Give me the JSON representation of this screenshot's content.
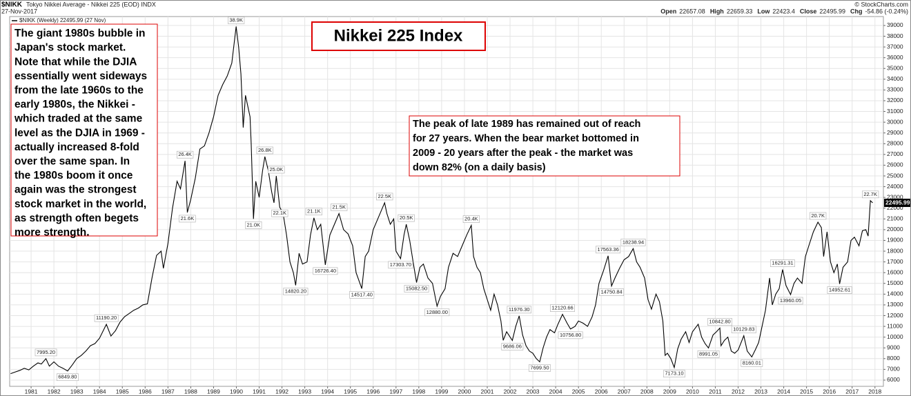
{
  "chart_data": {
    "type": "line",
    "symbol": "$NIKK",
    "subtitle": "Tokyo Nikkei Average - Nikkei 225 (EOD) INDX",
    "date": "27-Nov-2017",
    "source": "© StockCharts.com",
    "ohlc": [
      {
        "name": "Open",
        "value": 22657.08
      },
      {
        "name": "High",
        "value": 22659.33
      },
      {
        "name": "Low",
        "value": 22423.4
      },
      {
        "name": "Close",
        "value": 22495.99
      }
    ],
    "change_name": "Chg",
    "change": "-54.86 (-0.24%)",
    "title": "Nikkei 225 Index",
    "note_left": [
      "The giant 1980s bubble in",
      "Japan's stock market.",
      "Note that while the DJIA",
      "essentially went sideways",
      "from the late 1960s to the",
      "early 1980s, the Nikkei -",
      "which traded at the same",
      "level as the DJIA in 1969 -",
      "actually increased 8-fold",
      "over the same span. In",
      "the 1980s boom it once",
      "again was the strongest",
      "stock market in the world,",
      "as strength often begets",
      "more strength."
    ],
    "note_right": [
      "The peak of late 1989 has remained out of reach",
      "for 27 years. When the bear market bottomed in",
      "2009 - 20 years after the peak - the market was",
      "down 82% (on a daily basis)"
    ],
    "x": [
      1980.1,
      1980.3,
      1980.5,
      1980.7,
      1980.9,
      1981.1,
      1981.3,
      1981.45,
      1981.65,
      1981.8,
      1982.0,
      1982.2,
      1982.4,
      1982.6,
      1982.8,
      1983.0,
      1983.2,
      1983.4,
      1983.6,
      1983.8,
      1984.0,
      1984.3,
      1984.5,
      1984.7,
      1984.9,
      1985.1,
      1985.3,
      1985.5,
      1985.7,
      1985.9,
      1986.1,
      1986.3,
      1986.5,
      1986.7,
      1986.8,
      1987.0,
      1987.2,
      1987.4,
      1987.55,
      1987.75,
      1987.85,
      1988.0,
      1988.2,
      1988.4,
      1988.6,
      1988.8,
      1989.0,
      1989.2,
      1989.4,
      1989.6,
      1989.8,
      1989.99,
      1990.1,
      1990.2,
      1990.3,
      1990.4,
      1990.5,
      1990.6,
      1990.65,
      1990.75,
      1990.85,
      1991.0,
      1991.15,
      1991.25,
      1991.4,
      1991.55,
      1991.65,
      1991.75,
      1991.9,
      1992.05,
      1992.2,
      1992.35,
      1992.5,
      1992.6,
      1992.75,
      1992.9,
      1993.1,
      1993.25,
      1993.4,
      1993.55,
      1993.7,
      1993.9,
      1994.1,
      1994.3,
      1994.5,
      1994.7,
      1994.9,
      1995.1,
      1995.25,
      1995.5,
      1995.65,
      1995.8,
      1996.0,
      1996.2,
      1996.5,
      1996.6,
      1996.75,
      1996.9,
      1997.0,
      1997.2,
      1997.35,
      1997.45,
      1997.6,
      1997.75,
      1997.9,
      1998.05,
      1998.2,
      1998.4,
      1998.6,
      1998.8,
      1998.95,
      1999.15,
      1999.3,
      1999.5,
      1999.7,
      1999.9,
      2000.1,
      2000.3,
      2000.4,
      2000.55,
      2000.7,
      2000.85,
      2001.0,
      2001.15,
      2001.3,
      2001.45,
      2001.6,
      2001.7,
      2001.85,
      2002.1,
      2002.25,
      2002.4,
      2002.55,
      2002.7,
      2002.85,
      2003.0,
      2003.15,
      2003.3,
      2003.45,
      2003.6,
      2003.75,
      2003.95,
      2004.1,
      2004.3,
      2004.5,
      2004.65,
      2004.85,
      2005.0,
      2005.2,
      2005.4,
      2005.6,
      2005.75,
      2005.9,
      2006.1,
      2006.3,
      2006.45,
      2006.6,
      2006.8,
      2007.0,
      2007.2,
      2007.4,
      2007.55,
      2007.7,
      2007.9,
      2008.05,
      2008.2,
      2008.4,
      2008.55,
      2008.7,
      2008.8,
      2008.9,
      2009.05,
      2009.2,
      2009.35,
      2009.5,
      2009.7,
      2009.85,
      2010.0,
      2010.25,
      2010.4,
      2010.55,
      2010.7,
      2010.9,
      2011.05,
      2011.2,
      2011.25,
      2011.4,
      2011.55,
      2011.7,
      2011.85,
      2012.0,
      2012.25,
      2012.4,
      2012.6,
      2012.75,
      2012.9,
      2013.05,
      2013.2,
      2013.38,
      2013.5,
      2013.65,
      2013.8,
      2013.95,
      2014.1,
      2014.3,
      2014.45,
      2014.6,
      2014.8,
      2014.95,
      2015.1,
      2015.3,
      2015.5,
      2015.65,
      2015.75,
      2015.9,
      2016.05,
      2016.2,
      2016.35,
      2016.45,
      2016.6,
      2016.8,
      2016.95,
      2017.1,
      2017.3,
      2017.45,
      2017.6,
      2017.7,
      2017.8,
      2017.9
    ],
    "series": [
      {
        "name": "$NIKK (Weekly) 22495.99 (27 Nov)",
        "color": "#000000",
        "values": [
          6600,
          6750,
          6900,
          7100,
          6950,
          7300,
          7600,
          7500,
          7995.2,
          7300,
          7700,
          7300,
          7100,
          6849.8,
          7400,
          8000,
          8300,
          8700,
          9200,
          9400,
          9900,
          11190.2,
          10100,
          10600,
          11400,
          11900,
          12200,
          12500,
          12700,
          13000,
          13100,
          15500,
          17600,
          18000,
          16400,
          18700,
          22000,
          24500,
          23800,
          26400,
          21600,
          22800,
          24800,
          27500,
          27800,
          29000,
          30500,
          32500,
          33500,
          34300,
          35500,
          38900,
          37000,
          34500,
          29500,
          32500,
          31500,
          30500,
          28000,
          21000,
          24500,
          23000,
          25500,
          26800,
          25500,
          23500,
          22500,
          25000,
          22100,
          21500,
          19500,
          17000,
          16000,
          14820.2,
          17800,
          16800,
          17000,
          19500,
          21100,
          20000,
          20500,
          16726.4,
          19500,
          20500,
          21500,
          20000,
          19600,
          18500,
          16000,
          14517.4,
          17500,
          18000,
          20000,
          21000,
          22500,
          21500,
          20500,
          21000,
          18000,
          17303.7,
          19500,
          20500,
          19000,
          17000,
          15082.5,
          16500,
          16800,
          15500,
          15000,
          12880,
          13800,
          14500,
          16500,
          17800,
          17500,
          18500,
          19500,
          20400,
          17500,
          16500,
          16000,
          14500,
          13500,
          12500,
          14000,
          13000,
          11500,
          9700,
          10500,
          9686.06,
          11000,
          11976.3,
          10200,
          9200,
          8700,
          8500,
          8000,
          7699.5,
          9000,
          10000,
          10700,
          10400,
          11200,
          12120.66,
          11300,
          10756.8,
          11000,
          11500,
          11300,
          11000,
          11900,
          13000,
          15000,
          16200,
          17563.36,
          14750.84,
          15500,
          16400,
          17200,
          17500,
          18238.94,
          17000,
          16500,
          15500,
          13500,
          12600,
          14000,
          13300,
          11500,
          8300,
          8500,
          8000,
          7173.1,
          8900,
          9800,
          10500,
          9500,
          10500,
          11200,
          10000,
          9400,
          8991.05,
          10200,
          10500,
          10842.8,
          9200,
          9700,
          10000,
          8700,
          8500,
          8800,
          10129.83,
          8700,
          8160.01,
          8800,
          9500,
          11000,
          12500,
          15500,
          13000,
          14000,
          14500,
          16291.31,
          14800,
          13960.05,
          15000,
          15500,
          15000,
          17500,
          18500,
          19800,
          20700,
          20200,
          17500,
          19800,
          17000,
          16000,
          16800,
          14952.61,
          16500,
          17000,
          19000,
          19300,
          18500,
          19900,
          20000,
          19400,
          22700,
          22495.99
        ]
      }
    ],
    "last_value": 22495.99,
    "annotations": [
      {
        "x": 1981.65,
        "value": 7995.2,
        "label": "7995.20",
        "side": "above"
      },
      {
        "x": 1982.6,
        "value": 6849.8,
        "label": "6849.80",
        "side": "below"
      },
      {
        "x": 1984.3,
        "value": 11190.2,
        "label": "11190.20",
        "side": "above"
      },
      {
        "x": 1987.75,
        "value": 26400,
        "label": "26.4K",
        "side": "above"
      },
      {
        "x": 1987.85,
        "value": 21600,
        "label": "21.6K",
        "side": "below"
      },
      {
        "x": 1989.99,
        "value": 38900,
        "label": "38.9K",
        "side": "above"
      },
      {
        "x": 1990.75,
        "value": 21000,
        "label": "21.0K",
        "side": "below"
      },
      {
        "x": 1991.25,
        "value": 26800,
        "label": "26.8K",
        "side": "above"
      },
      {
        "x": 1991.75,
        "value": 25000,
        "label": "25.0K",
        "side": "above"
      },
      {
        "x": 1991.9,
        "value": 22100,
        "label": "22.1K",
        "side": "below"
      },
      {
        "x": 1992.6,
        "value": 14820.2,
        "label": "14820.20",
        "side": "below"
      },
      {
        "x": 1993.4,
        "value": 21100,
        "label": "21.1K",
        "side": "above"
      },
      {
        "x": 1993.9,
        "value": 16726.4,
        "label": "16726.40",
        "side": "below"
      },
      {
        "x": 1994.5,
        "value": 21500,
        "label": "21.5K",
        "side": "above"
      },
      {
        "x": 1995.5,
        "value": 14517.4,
        "label": "14517.40",
        "side": "below"
      },
      {
        "x": 1996.5,
        "value": 22500,
        "label": "22.5K",
        "side": "above"
      },
      {
        "x": 1997.45,
        "value": 20500,
        "label": "20.5K",
        "side": "above"
      },
      {
        "x": 1997.2,
        "value": 17303.7,
        "label": "17303.70",
        "side": "below"
      },
      {
        "x": 1997.9,
        "value": 15082.5,
        "label": "15082.50",
        "side": "below"
      },
      {
        "x": 1998.8,
        "value": 12880,
        "label": "12880.00",
        "side": "below"
      },
      {
        "x": 2000.3,
        "value": 20400,
        "label": "20.4K",
        "side": "above"
      },
      {
        "x": 2002.1,
        "value": 9686.06,
        "label": "9686.06",
        "side": "below"
      },
      {
        "x": 2002.4,
        "value": 11976.3,
        "label": "11976.30",
        "side": "above"
      },
      {
        "x": 2003.3,
        "value": 7699.5,
        "label": "7699.50",
        "side": "below"
      },
      {
        "x": 2004.3,
        "value": 12120.66,
        "label": "12120.66",
        "side": "above"
      },
      {
        "x": 2004.65,
        "value": 10756.8,
        "label": "10756.80",
        "side": "below"
      },
      {
        "x": 2006.3,
        "value": 17563.36,
        "label": "17563.36",
        "side": "above"
      },
      {
        "x": 2006.45,
        "value": 14750.84,
        "label": "14750.84",
        "side": "below"
      },
      {
        "x": 2007.4,
        "value": 18238.94,
        "label": "18238.94",
        "side": "above"
      },
      {
        "x": 2009.2,
        "value": 7173.1,
        "label": "7173.10",
        "side": "below"
      },
      {
        "x": 2010.7,
        "value": 8991.05,
        "label": "8991.05",
        "side": "below"
      },
      {
        "x": 2011.2,
        "value": 10842.8,
        "label": "10842.80",
        "side": "above"
      },
      {
        "x": 2012.25,
        "value": 10129.83,
        "label": "10129.83",
        "side": "above"
      },
      {
        "x": 2012.6,
        "value": 8160.01,
        "label": "8160.01",
        "side": "below"
      },
      {
        "x": 2013.95,
        "value": 16291.31,
        "label": "16291.31",
        "side": "above"
      },
      {
        "x": 2014.3,
        "value": 13960.05,
        "label": "13960.05",
        "side": "below"
      },
      {
        "x": 2015.5,
        "value": 20700,
        "label": "20.7K",
        "side": "above"
      },
      {
        "x": 2016.45,
        "value": 14952.61,
        "label": "14952.61",
        "side": "below"
      },
      {
        "x": 2017.8,
        "value": 22700,
        "label": "22.7K",
        "side": "above"
      }
    ],
    "xlim": [
      1980.06,
      2018.37
    ],
    "xticks": [
      1981,
      1982,
      1983,
      1984,
      1985,
      1986,
      1987,
      1988,
      1989,
      1990,
      1991,
      1992,
      1993,
      1994,
      1995,
      1996,
      1997,
      1998,
      1999,
      2000,
      2001,
      2002,
      2003,
      2004,
      2005,
      2006,
      2007,
      2008,
      2009,
      2010,
      2011,
      2012,
      2013,
      2014,
      2015,
      2016,
      2017,
      2018
    ],
    "ylim": [
      5420,
      39830
    ],
    "yticks": [
      6000,
      7000,
      8000,
      9000,
      10000,
      11000,
      12000,
      13000,
      14000,
      15000,
      16000,
      17000,
      18000,
      19000,
      20000,
      21000,
      22000,
      23000,
      24000,
      25000,
      26000,
      27000,
      28000,
      29000,
      30000,
      31000,
      32000,
      33000,
      34000,
      35000,
      36000,
      37000,
      38000,
      39000
    ],
    "grid": true
  }
}
